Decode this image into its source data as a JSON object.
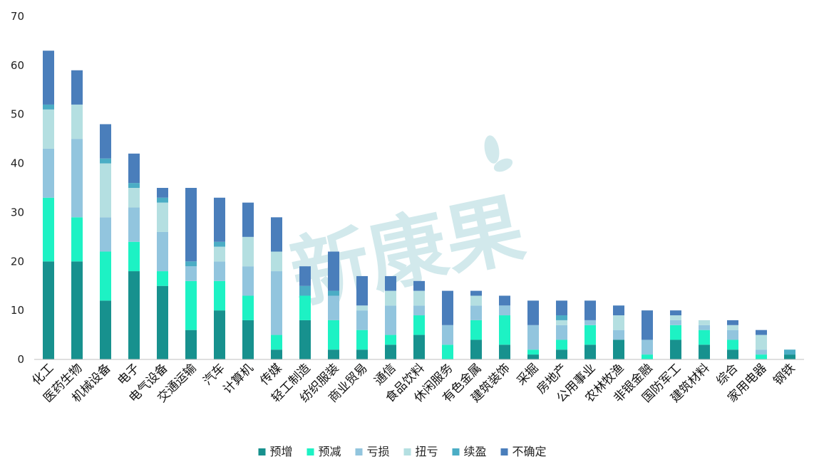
{
  "chart_data": {
    "type": "bar",
    "stacked": true,
    "grid": false,
    "legend_position": "bottom-center",
    "ylim": [
      0,
      70
    ],
    "yticks": [
      0,
      10,
      20,
      30,
      40,
      50,
      60,
      70
    ],
    "categories": [
      "化工",
      "医药生物",
      "机械设备",
      "电子",
      "电气设备",
      "交通运输",
      "汽车",
      "计算机",
      "传媒",
      "轻工制造",
      "纺织服装",
      "商业贸易",
      "通信",
      "食品饮料",
      "休闲服务",
      "有色金属",
      "建筑装饰",
      "采掘",
      "房地产",
      "公用事业",
      "农林牧渔",
      "非银金融",
      "国防军工",
      "建筑材料",
      "综合",
      "家用电器",
      "钢铁"
    ],
    "series": [
      {
        "name": "预增",
        "color": "#17918E",
        "values": [
          20,
          20,
          12,
          18,
          15,
          6,
          10,
          8,
          2,
          8,
          2,
          2,
          3,
          5,
          0,
          4,
          3,
          1,
          2,
          3,
          4,
          0,
          4,
          3,
          2,
          0,
          1
        ]
      },
      {
        "name": "预减",
        "color": "#1DF2C4",
        "values": [
          13,
          9,
          10,
          6,
          3,
          10,
          6,
          5,
          3,
          5,
          6,
          4,
          2,
          4,
          3,
          4,
          6,
          1,
          2,
          4,
          0,
          1,
          3,
          3,
          2,
          1,
          0
        ]
      },
      {
        "name": "亏损",
        "color": "#92C5DE",
        "values": [
          10,
          16,
          7,
          7,
          8,
          3,
          4,
          6,
          13,
          0,
          5,
          4,
          6,
          2,
          4,
          3,
          2,
          5,
          3,
          1,
          2,
          3,
          1,
          1,
          2,
          1,
          0
        ]
      },
      {
        "name": "扭亏",
        "color": "#B4DFE1",
        "values": [
          8,
          7,
          11,
          4,
          6,
          0,
          3,
          6,
          4,
          0,
          0,
          1,
          3,
          3,
          0,
          2,
          0,
          0,
          1,
          0,
          3,
          0,
          1,
          1,
          1,
          3,
          0
        ]
      },
      {
        "name": "续盈",
        "color": "#4BADC5",
        "values": [
          1,
          0,
          1,
          1,
          1,
          1,
          1,
          0,
          0,
          2,
          1,
          0,
          0,
          0,
          0,
          0,
          0,
          0,
          1,
          0,
          0,
          0,
          0,
          0,
          0,
          0,
          1
        ]
      },
      {
        "name": "不确定",
        "color": "#4A7EBB",
        "values": [
          11,
          7,
          7,
          6,
          2,
          15,
          9,
          7,
          7,
          4,
          8,
          6,
          3,
          2,
          7,
          1,
          2,
          5,
          3,
          4,
          2,
          6,
          1,
          0,
          1,
          1,
          0
        ]
      }
    ]
  }
}
